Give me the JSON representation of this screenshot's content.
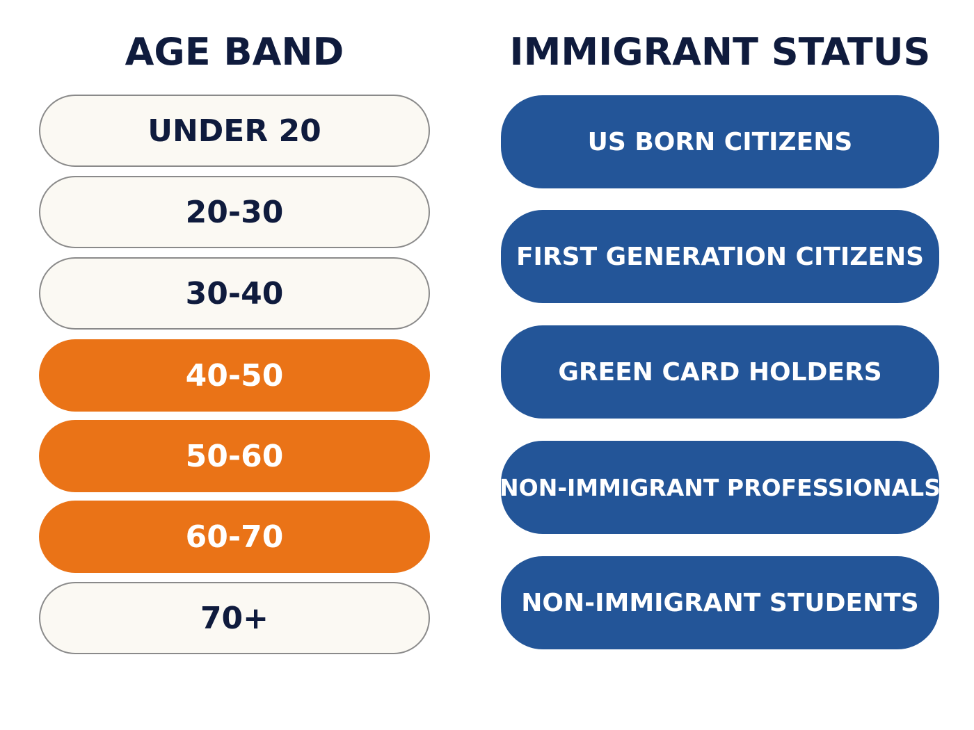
{
  "columns": {
    "age_band": {
      "title": "AGE BAND",
      "items": [
        {
          "label": "UNDER 20",
          "highlighted": false
        },
        {
          "label": "20-30",
          "highlighted": false
        },
        {
          "label": "30-40",
          "highlighted": false
        },
        {
          "label": "40-50",
          "highlighted": true
        },
        {
          "label": "50-60",
          "highlighted": true
        },
        {
          "label": "60-70",
          "highlighted": true
        },
        {
          "label": "70+",
          "highlighted": false
        }
      ]
    },
    "immigrant_status": {
      "title": "IMMIGRANT STATUS",
      "items": [
        {
          "label": "US BORN CITIZENS"
        },
        {
          "label": "FIRST GENERATION CITIZENS"
        },
        {
          "label": "GREEN CARD HOLDERS"
        },
        {
          "label": "NON-IMMIGRANT PROFESSIONALS"
        },
        {
          "label": "NON-IMMIGRANT STUDENTS"
        }
      ]
    }
  },
  "colors": {
    "heading_text": "#0f1b3d",
    "age_plain_fill": "#fbf9f3",
    "age_plain_border": "#8a8a8a",
    "age_highlight_fill": "#ea7317",
    "status_fill": "#235598",
    "light_text": "#ffffff"
  }
}
